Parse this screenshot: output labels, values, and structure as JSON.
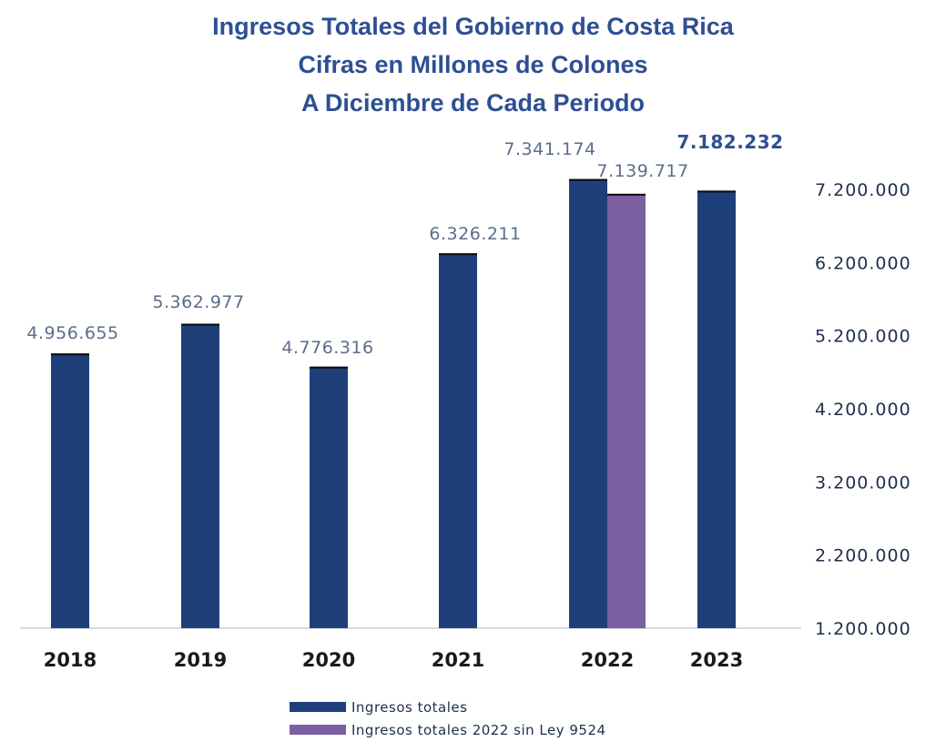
{
  "chart_data": {
    "type": "bar",
    "title": "Ingresos Totales del Gobierno de Costa Rica",
    "subtitle_lines": [
      "Cifras en Millones de Colones",
      "A Diciembre de Cada Periodo"
    ],
    "categories": [
      "2018",
      "2019",
      "2020",
      "2021",
      "2022",
      "2023"
    ],
    "series": [
      {
        "name": "Ingresos totales",
        "color": "#1f3f7a",
        "values": [
          4956655,
          5362977,
          4776316,
          6326211,
          7341174,
          7182232
        ],
        "labels": [
          "4.956.655",
          "5.362.977",
          "4.776.316",
          "6.326.211",
          "7.341.174",
          "7.182.232"
        ]
      },
      {
        "name": "Ingresos totales 2022 sin Ley 9524",
        "color": "#7c5fa3",
        "values": [
          null,
          null,
          null,
          null,
          7139717,
          null
        ],
        "labels": [
          "",
          "",
          "",
          "",
          "7.139.717",
          ""
        ]
      }
    ],
    "bold_label_category": "2023",
    "ylim": [
      1200000,
      7200000
    ],
    "yticks": [
      1200000,
      2200000,
      3200000,
      4200000,
      5200000,
      6200000,
      7200000
    ],
    "ytick_labels": [
      "1.200.000",
      "2.200.000",
      "3.200.000",
      "4.200.000",
      "5.200.000",
      "6.200.000",
      "7.200.000"
    ],
    "y_axis_side": "right",
    "grid": false,
    "legend_position": "bottom-center"
  }
}
